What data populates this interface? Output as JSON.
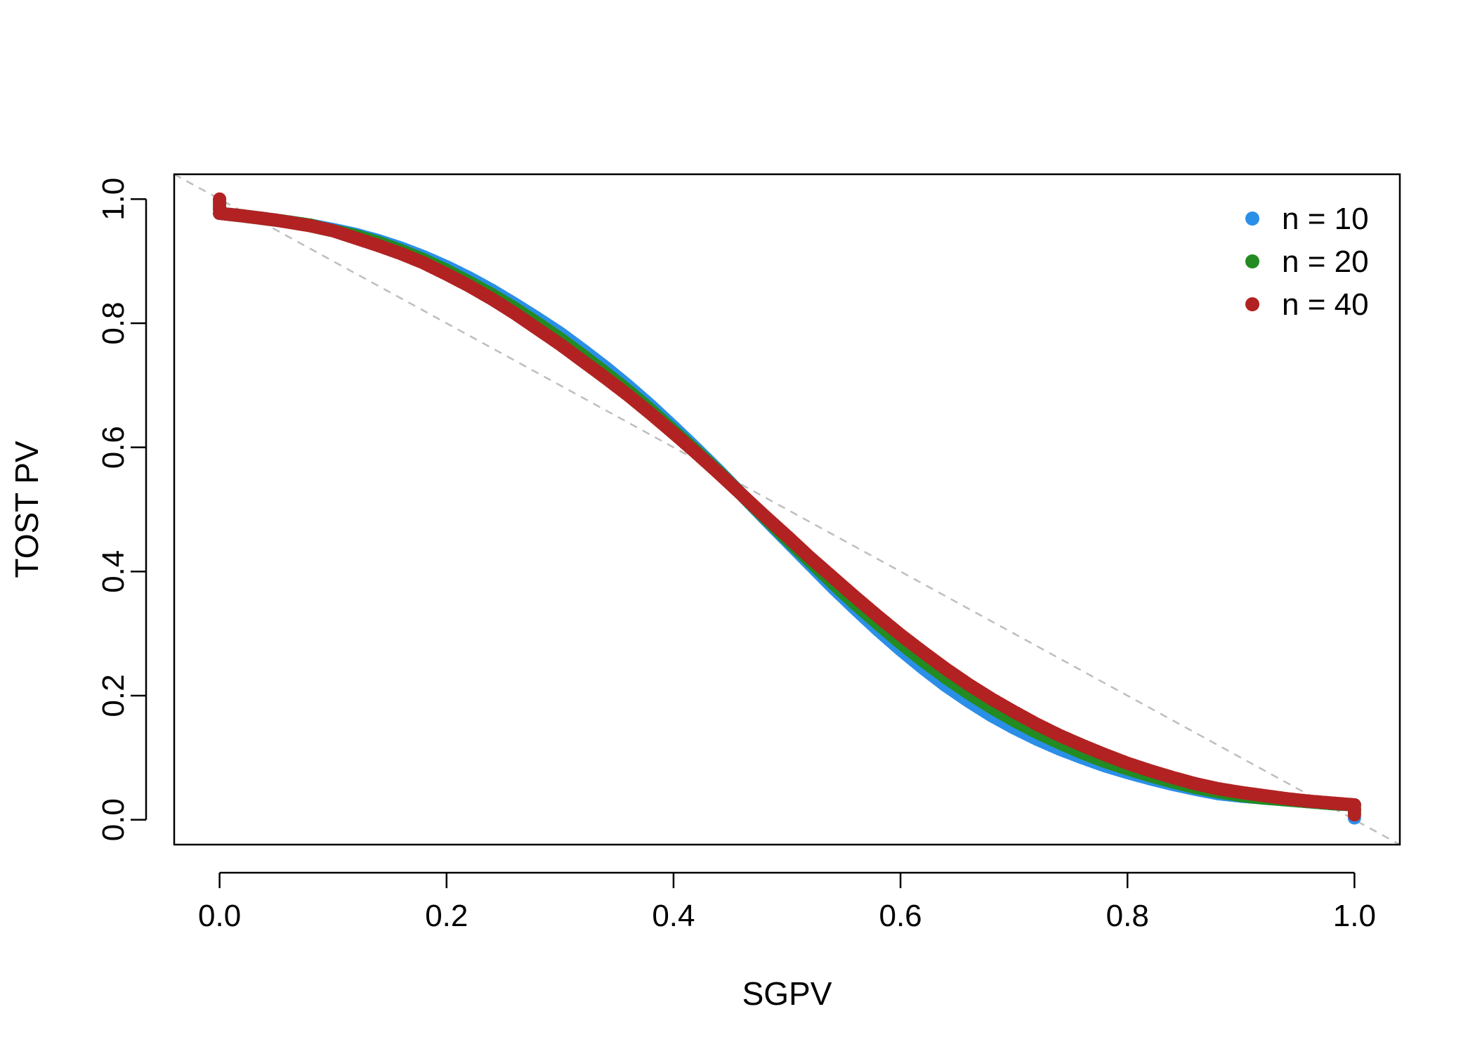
{
  "chart_data": {
    "type": "scatter",
    "title": "",
    "xlabel": "SGPV",
    "ylabel": "TOST PV",
    "xlim": [
      -0.04,
      1.04
    ],
    "ylim": [
      -0.04,
      1.04
    ],
    "x_ticks": [
      0.0,
      0.2,
      0.4,
      0.6,
      0.8,
      1.0
    ],
    "x_tick_labels": [
      "0.0",
      "0.2",
      "0.4",
      "0.6",
      "0.8",
      "1.0"
    ],
    "y_ticks": [
      0.0,
      0.2,
      0.4,
      0.6,
      0.8,
      1.0
    ],
    "y_tick_labels": [
      "0.0",
      "0.2",
      "0.4",
      "0.6",
      "0.8",
      "1.0"
    ],
    "grid": false,
    "reference_line": {
      "type": "diagonal",
      "from": [
        0,
        1
      ],
      "to": [
        1,
        0
      ],
      "style": "dashed",
      "color": "#bebebe"
    },
    "legend": {
      "position": "top-right"
    },
    "series": [
      {
        "name": "n = 10",
        "color": "#2b8fe8",
        "points": [
          [
            0.0,
            0.999
          ],
          [
            0.0,
            0.985
          ],
          [
            0.0,
            0.977
          ],
          [
            0.02,
            0.973
          ],
          [
            0.05,
            0.966
          ],
          [
            0.08,
            0.958
          ],
          [
            0.1,
            0.951
          ],
          [
            0.12,
            0.943
          ],
          [
            0.14,
            0.933
          ],
          [
            0.16,
            0.921
          ],
          [
            0.18,
            0.907
          ],
          [
            0.2,
            0.891
          ],
          [
            0.22,
            0.873
          ],
          [
            0.24,
            0.853
          ],
          [
            0.26,
            0.831
          ],
          [
            0.28,
            0.808
          ],
          [
            0.3,
            0.784
          ],
          [
            0.32,
            0.757
          ],
          [
            0.34,
            0.729
          ],
          [
            0.36,
            0.699
          ],
          [
            0.38,
            0.667
          ],
          [
            0.4,
            0.633
          ],
          [
            0.42,
            0.598
          ],
          [
            0.44,
            0.562
          ],
          [
            0.46,
            0.524
          ],
          [
            0.48,
            0.486
          ],
          [
            0.5,
            0.449
          ],
          [
            0.52,
            0.412
          ],
          [
            0.54,
            0.375
          ],
          [
            0.56,
            0.34
          ],
          [
            0.58,
            0.306
          ],
          [
            0.6,
            0.274
          ],
          [
            0.62,
            0.244
          ],
          [
            0.64,
            0.216
          ],
          [
            0.66,
            0.191
          ],
          [
            0.68,
            0.168
          ],
          [
            0.7,
            0.148
          ],
          [
            0.72,
            0.13
          ],
          [
            0.74,
            0.114
          ],
          [
            0.76,
            0.1
          ],
          [
            0.78,
            0.087
          ],
          [
            0.8,
            0.076
          ],
          [
            0.82,
            0.066
          ],
          [
            0.84,
            0.057
          ],
          [
            0.86,
            0.049
          ],
          [
            0.88,
            0.042
          ],
          [
            0.9,
            0.038
          ],
          [
            0.92,
            0.035
          ],
          [
            0.94,
            0.032
          ],
          [
            0.96,
            0.029
          ],
          [
            0.98,
            0.026
          ],
          [
            1.0,
            0.024
          ],
          [
            1.0,
            0.012
          ],
          [
            1.0,
            0.003
          ]
        ]
      },
      {
        "name": "n = 20",
        "color": "#228b22",
        "points": [
          [
            0.0,
            0.997
          ],
          [
            0.0,
            0.983
          ],
          [
            0.0,
            0.977
          ],
          [
            0.02,
            0.973
          ],
          [
            0.05,
            0.966
          ],
          [
            0.08,
            0.958
          ],
          [
            0.09,
            0.953
          ],
          [
            0.12,
            0.941
          ],
          [
            0.14,
            0.93
          ],
          [
            0.16,
            0.917
          ],
          [
            0.18,
            0.902
          ],
          [
            0.2,
            0.885
          ],
          [
            0.22,
            0.866
          ],
          [
            0.24,
            0.846
          ],
          [
            0.26,
            0.824
          ],
          [
            0.28,
            0.8
          ],
          [
            0.3,
            0.775
          ],
          [
            0.32,
            0.748
          ],
          [
            0.34,
            0.72
          ],
          [
            0.36,
            0.691
          ],
          [
            0.38,
            0.66
          ],
          [
            0.4,
            0.627
          ],
          [
            0.42,
            0.594
          ],
          [
            0.44,
            0.56
          ],
          [
            0.46,
            0.524
          ],
          [
            0.48,
            0.488
          ],
          [
            0.5,
            0.452
          ],
          [
            0.52,
            0.417
          ],
          [
            0.54,
            0.382
          ],
          [
            0.56,
            0.348
          ],
          [
            0.58,
            0.316
          ],
          [
            0.6,
            0.285
          ],
          [
            0.62,
            0.256
          ],
          [
            0.64,
            0.229
          ],
          [
            0.66,
            0.204
          ],
          [
            0.68,
            0.181
          ],
          [
            0.7,
            0.16
          ],
          [
            0.72,
            0.141
          ],
          [
            0.74,
            0.124
          ],
          [
            0.76,
            0.108
          ],
          [
            0.78,
            0.094
          ],
          [
            0.8,
            0.082
          ],
          [
            0.82,
            0.071
          ],
          [
            0.84,
            0.061
          ],
          [
            0.86,
            0.052
          ],
          [
            0.88,
            0.045
          ],
          [
            0.9,
            0.039
          ],
          [
            0.92,
            0.035
          ],
          [
            0.94,
            0.032
          ],
          [
            0.96,
            0.029
          ],
          [
            0.98,
            0.026
          ],
          [
            1.0,
            0.024
          ],
          [
            1.0,
            0.01
          ]
        ]
      },
      {
        "name": "n = 40",
        "color": "#b22222",
        "points": [
          [
            0.0,
            1.0
          ],
          [
            0.0,
            0.992
          ],
          [
            0.0,
            0.984
          ],
          [
            0.0,
            0.977
          ],
          [
            0.02,
            0.973
          ],
          [
            0.05,
            0.966
          ],
          [
            0.08,
            0.957
          ],
          [
            0.1,
            0.949
          ],
          [
            0.12,
            0.937
          ],
          [
            0.14,
            0.925
          ],
          [
            0.16,
            0.912
          ],
          [
            0.18,
            0.897
          ],
          [
            0.2,
            0.879
          ],
          [
            0.22,
            0.86
          ],
          [
            0.24,
            0.839
          ],
          [
            0.26,
            0.816
          ],
          [
            0.28,
            0.791
          ],
          [
            0.3,
            0.766
          ],
          [
            0.32,
            0.739
          ],
          [
            0.34,
            0.712
          ],
          [
            0.36,
            0.684
          ],
          [
            0.38,
            0.654
          ],
          [
            0.4,
            0.623
          ],
          [
            0.42,
            0.591
          ],
          [
            0.44,
            0.558
          ],
          [
            0.46,
            0.524
          ],
          [
            0.48,
            0.49
          ],
          [
            0.5,
            0.457
          ],
          [
            0.52,
            0.423
          ],
          [
            0.54,
            0.391
          ],
          [
            0.56,
            0.359
          ],
          [
            0.58,
            0.328
          ],
          [
            0.6,
            0.298
          ],
          [
            0.62,
            0.27
          ],
          [
            0.64,
            0.243
          ],
          [
            0.66,
            0.218
          ],
          [
            0.68,
            0.195
          ],
          [
            0.7,
            0.174
          ],
          [
            0.72,
            0.154
          ],
          [
            0.74,
            0.136
          ],
          [
            0.76,
            0.12
          ],
          [
            0.78,
            0.105
          ],
          [
            0.8,
            0.091
          ],
          [
            0.82,
            0.079
          ],
          [
            0.84,
            0.068
          ],
          [
            0.86,
            0.058
          ],
          [
            0.88,
            0.05
          ],
          [
            0.9,
            0.044
          ],
          [
            0.92,
            0.039
          ],
          [
            0.94,
            0.034
          ],
          [
            0.96,
            0.03
          ],
          [
            0.98,
            0.027
          ],
          [
            1.0,
            0.024
          ],
          [
            1.0,
            0.016
          ],
          [
            1.0,
            0.008
          ]
        ]
      }
    ]
  }
}
